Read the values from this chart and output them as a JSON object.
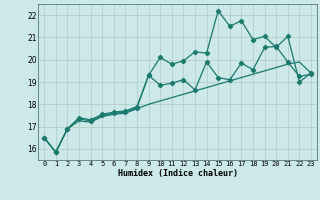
{
  "title": "",
  "xlabel": "Humidex (Indice chaleur)",
  "bg_color": "#cce8e8",
  "grid_color": "#b0c8c8",
  "line_color": "#1a7a6e",
  "xlim": [
    -0.5,
    23.5
  ],
  "ylim": [
    15.5,
    22.5
  ],
  "xticks": [
    0,
    1,
    2,
    3,
    4,
    5,
    6,
    7,
    8,
    9,
    10,
    11,
    12,
    13,
    14,
    15,
    16,
    17,
    18,
    19,
    20,
    21,
    22,
    23
  ],
  "yticks": [
    16,
    17,
    18,
    19,
    20,
    21,
    22
  ],
  "x": [
    0,
    1,
    2,
    3,
    4,
    5,
    6,
    7,
    8,
    9,
    10,
    11,
    12,
    13,
    14,
    15,
    16,
    17,
    18,
    19,
    20,
    21,
    22,
    23
  ],
  "line1": [
    16.5,
    15.85,
    16.9,
    17.4,
    17.3,
    17.55,
    17.65,
    17.7,
    17.9,
    19.3,
    20.1,
    19.8,
    19.95,
    20.35,
    20.3,
    22.2,
    21.5,
    21.75,
    20.9,
    21.05,
    20.55,
    21.05,
    19.0,
    19.4
  ],
  "line2": [
    16.5,
    15.85,
    16.9,
    17.35,
    17.25,
    17.5,
    17.6,
    17.65,
    17.85,
    19.3,
    18.85,
    18.95,
    19.1,
    18.65,
    19.9,
    19.2,
    19.1,
    19.85,
    19.55,
    20.55,
    20.6,
    19.9,
    19.25,
    19.35
  ],
  "line3": [
    16.5,
    15.85,
    16.9,
    17.25,
    17.2,
    17.45,
    17.55,
    17.6,
    17.8,
    18.0,
    18.15,
    18.3,
    18.45,
    18.6,
    18.75,
    18.9,
    19.05,
    19.2,
    19.35,
    19.5,
    19.65,
    19.8,
    19.9,
    19.4
  ]
}
